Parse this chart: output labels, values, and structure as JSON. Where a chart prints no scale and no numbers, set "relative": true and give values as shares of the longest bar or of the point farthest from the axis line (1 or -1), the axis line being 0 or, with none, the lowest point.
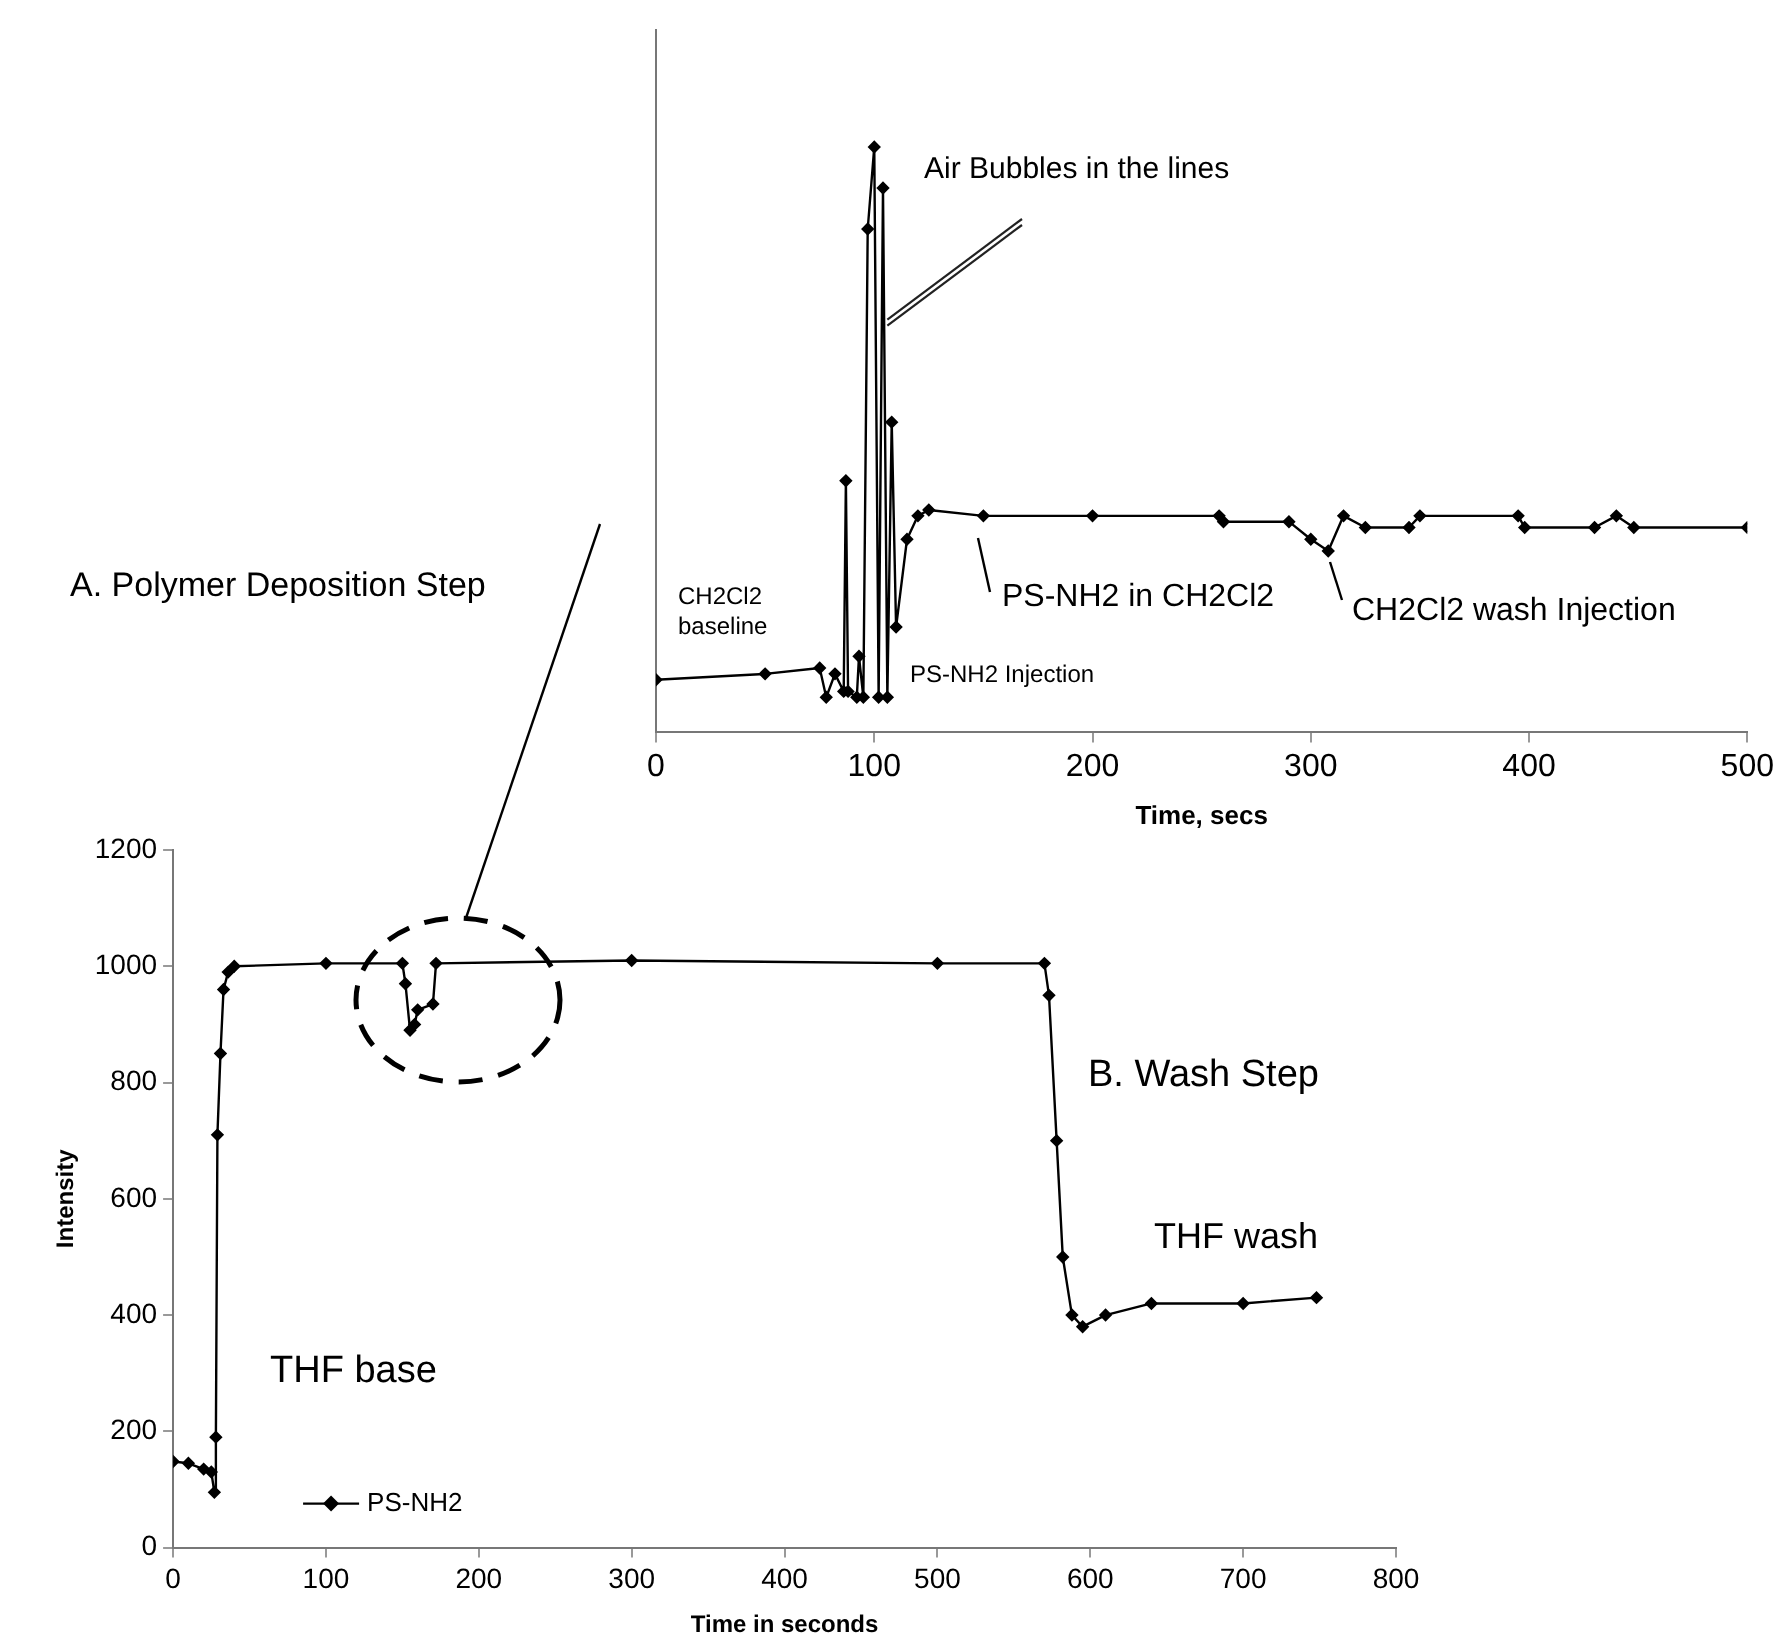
{
  "chart_data": [
    {
      "type": "line",
      "relative": true,
      "tick_labels": "x",
      "xlabel": "Time, secs",
      "xlim": [
        0,
        500
      ],
      "xticks": [
        0,
        100,
        200,
        300,
        400,
        500
      ],
      "grid": false,
      "legend": false,
      "marker": "diamond",
      "line_style": "solid",
      "x": [
        0,
        50,
        75,
        78,
        82,
        86,
        87,
        88,
        92,
        93,
        95,
        97,
        100,
        102,
        104,
        106,
        108,
        110,
        115,
        120,
        125,
        150,
        200,
        258,
        260,
        290,
        300,
        308,
        315,
        325,
        345,
        350,
        395,
        398,
        430,
        440,
        448,
        500
      ],
      "series": [
        {
          "color": "#000000",
          "values": [
            0.09,
            0.1,
            0.11,
            0.06,
            0.1,
            0.07,
            0.43,
            0.07,
            0.06,
            0.13,
            0.06,
            0.86,
            1,
            0.06,
            0.93,
            0.06,
            0.53,
            0.18,
            0.33,
            0.37,
            0.38,
            0.37,
            0.37,
            0.37,
            0.36,
            0.36,
            0.33,
            0.31,
            0.37,
            0.35,
            0.35,
            0.37,
            0.37,
            0.35,
            0.35,
            0.37,
            0.35,
            0.35
          ]
        }
      ],
      "annotations": [
        {
          "text": "Air Bubbles in the lines",
          "x": 106,
          "y": 0.7
        },
        "CH2Cl2 baseline",
        "PS-NH2 Injection",
        "PS-NH2 in CH2Cl2",
        "CH2Cl2 wash Injection"
      ]
    },
    {
      "type": "line",
      "xlabel": "Time in seconds",
      "ylabel": "Intensity",
      "xlim": [
        0,
        800
      ],
      "xticks": [
        0,
        100,
        200,
        300,
        400,
        500,
        600,
        700,
        800
      ],
      "ylim": [
        0,
        1200
      ],
      "yticks": [
        0,
        200,
        400,
        600,
        800,
        1000,
        1200
      ],
      "grid": false,
      "legend": "bottom left",
      "marker": "diamond",
      "line_style": "solid",
      "x": [
        0,
        10,
        20,
        25,
        27,
        28,
        29,
        31,
        33,
        36,
        40,
        100,
        150,
        152,
        155,
        158,
        160,
        170,
        172,
        300,
        500,
        570,
        573,
        578,
        582,
        588,
        595,
        610,
        640,
        700,
        748
      ],
      "series": [
        {
          "name": "PS-NH2",
          "color": "#000000",
          "values": [
            148,
            145,
            135,
            130,
            95,
            190,
            710,
            850,
            960,
            990,
            1000,
            1005,
            1005,
            970,
            890,
            900,
            925,
            935,
            1005,
            1010,
            1005,
            1005,
            950,
            700,
            500,
            400,
            380,
            400,
            420,
            420,
            430
          ]
        }
      ],
      "annotations": [
        "A. Polymer Deposition Step",
        "B. Wash Step",
        "THF wash",
        "THF base"
      ]
    }
  ]
}
